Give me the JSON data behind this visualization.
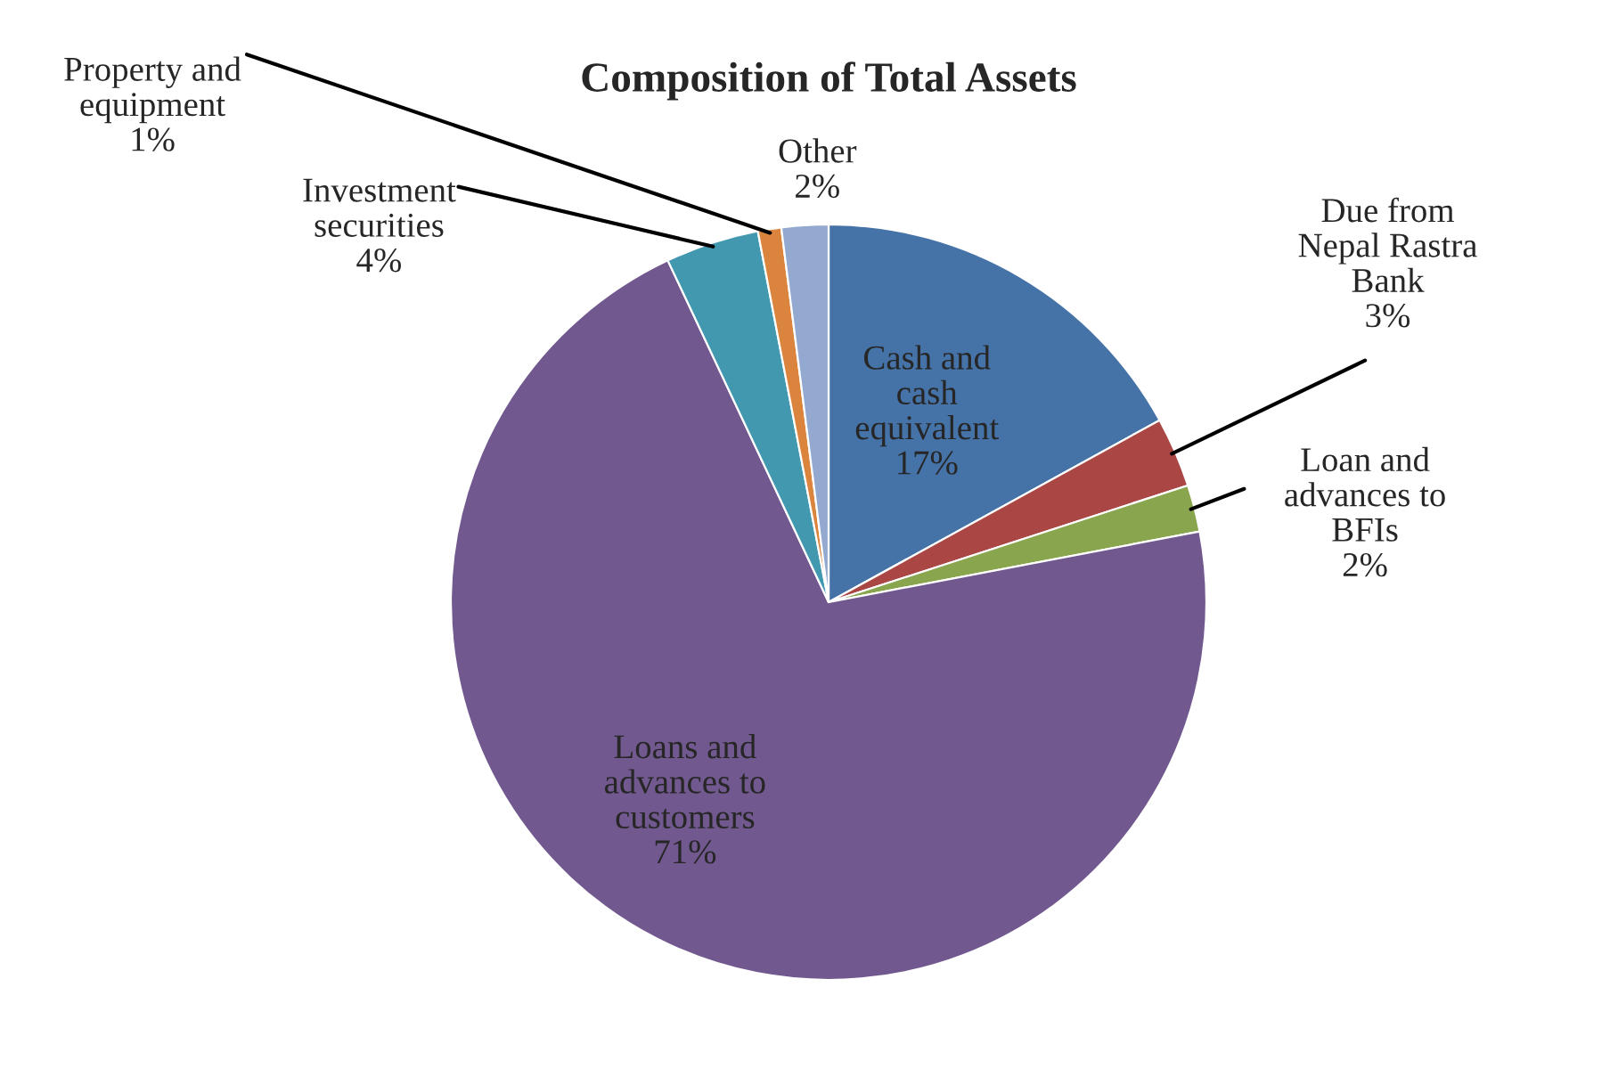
{
  "chart_data": {
    "type": "pie",
    "title": "Composition of Total Assets",
    "categories": [
      "Cash and\ncash\nequivalent",
      "Due from\nNepal Rastra\nBank",
      "Loan and\nadvances to\nBFIs",
      "Loans and\nadvances to\ncustomers",
      "Investment\nsecurities",
      "Property and\nequipment",
      "Other"
    ],
    "values": [
      17,
      3,
      2,
      71,
      4,
      1,
      2
    ],
    "value_labels": [
      "17%",
      "3%",
      "2%",
      "71%",
      "4%",
      "1%",
      "2%"
    ],
    "colors": [
      "#4572a7",
      "#aa4643",
      "#89a54e",
      "#71588f",
      "#4198af",
      "#db843d",
      "#93a9cf"
    ],
    "legend": false
  }
}
